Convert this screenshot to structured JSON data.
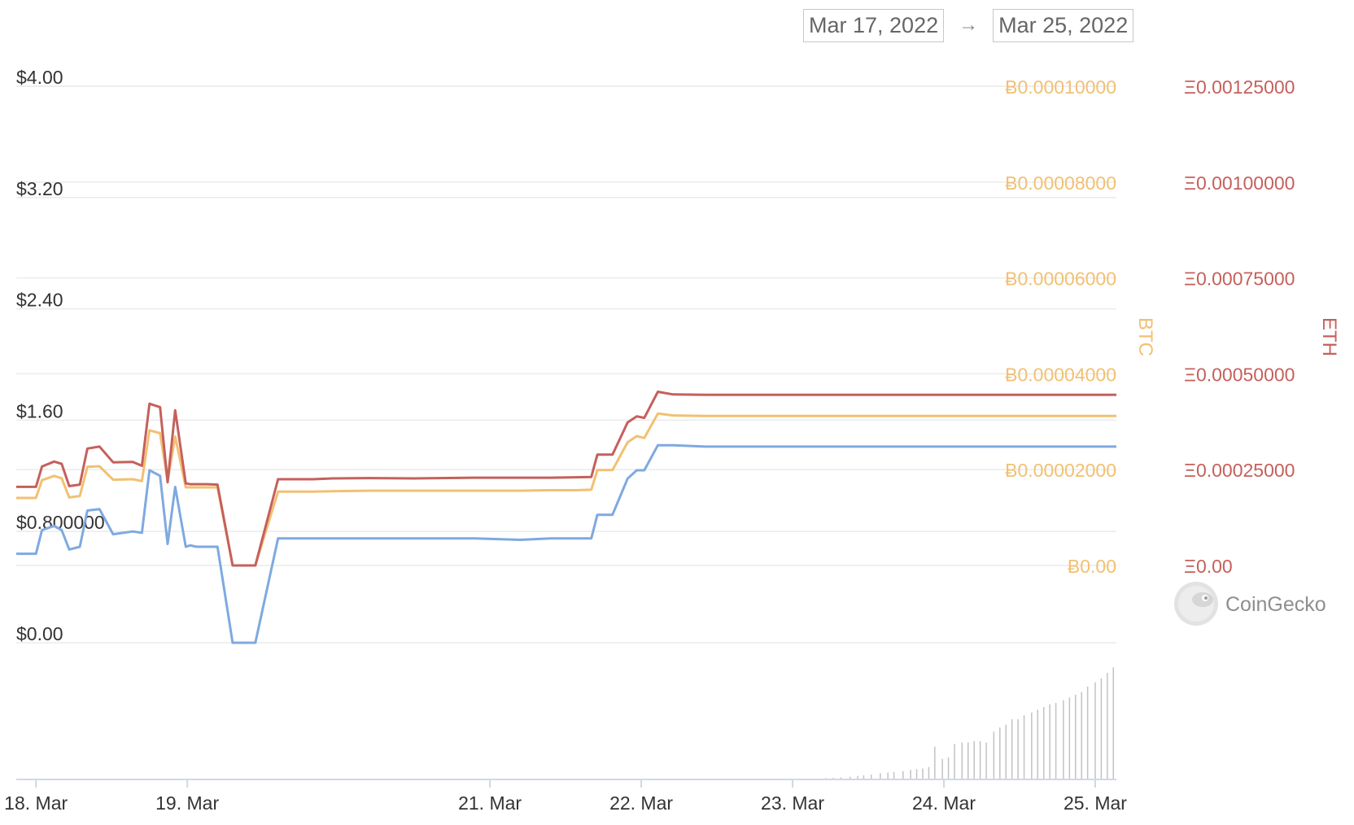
{
  "range": {
    "from": "Mar 17, 2022",
    "arrow": "→",
    "to": "Mar 25, 2022"
  },
  "brand": {
    "name": "CoinGecko",
    "icon": "gecko-logo-icon"
  },
  "colors": {
    "usd": "#7fa9e0",
    "btc": "#f2c072",
    "eth": "#c5605c",
    "grid": "#ebebeb",
    "axis_text": "#333333",
    "volume": "#c2c2c2"
  },
  "chart_data": {
    "type": "line",
    "x_unit": "days (day-of-month, March 2022)",
    "x_ticks": [
      {
        "x": 18,
        "label": "18. Mar"
      },
      {
        "x": 19,
        "label": "19. Mar"
      },
      {
        "x": 21,
        "label": "21. Mar"
      },
      {
        "x": 22,
        "label": "22. Mar"
      },
      {
        "x": 23,
        "label": "23. Mar"
      },
      {
        "x": 24,
        "label": "24. Mar"
      },
      {
        "x": 25,
        "label": "25. Mar"
      }
    ],
    "xlim": [
      17.87,
      25.14
    ],
    "axes": {
      "usd": {
        "ticks": [
          0,
          0.8,
          1.6,
          2.4,
          3.2,
          4.0
        ],
        "labels": [
          "$0.00",
          "$0.800000",
          "$1.60",
          "$2.40",
          "$3.20",
          "$4.00"
        ],
        "ylim": [
          0,
          4.0
        ]
      },
      "btc": {
        "ticks": [
          0,
          2e-05,
          4e-05,
          6e-05,
          8e-05,
          0.0001
        ],
        "labels": [
          "Ƀ0.00",
          "Ƀ0.00002000",
          "Ƀ0.00004000",
          "Ƀ0.00006000",
          "Ƀ0.00008000",
          "Ƀ0.00010000"
        ],
        "ylim": [
          0,
          0.0001
        ],
        "title": "BTC"
      },
      "eth": {
        "ticks": [
          0,
          0.00025,
          0.0005,
          0.00075,
          0.001,
          0.00125
        ],
        "labels": [
          "Ξ0.00",
          "Ξ0.00025000",
          "Ξ0.00050000",
          "Ξ0.00075000",
          "Ξ0.00100000",
          "Ξ0.00125000"
        ],
        "ylim": [
          0,
          0.00125
        ],
        "title": "ETH"
      }
    },
    "series": [
      {
        "axis": "usd",
        "x": [
          17.87,
          18.0,
          18.04,
          18.12,
          18.17,
          18.22,
          18.29,
          18.34,
          18.42,
          18.51,
          18.64,
          18.7,
          18.75,
          18.82,
          18.87,
          18.92,
          18.99,
          19.02,
          19.06,
          19.13,
          19.2,
          19.3,
          19.45,
          19.6,
          19.68,
          19.74,
          19.83,
          19.96,
          20.2,
          20.5,
          20.9,
          21.2,
          21.4,
          21.57,
          21.67,
          21.71,
          21.77,
          21.81,
          21.91,
          21.97,
          22.02,
          22.11,
          22.21,
          22.42,
          22.47,
          22.52,
          22.6,
          22.66,
          22.71,
          22.74,
          22.81,
          22.86,
          22.89,
          22.96,
          23.01,
          23.06,
          23.11,
          23.14,
          23.22,
          23.27,
          23.32,
          23.38,
          23.47,
          23.52,
          23.58,
          23.63,
          23.73,
          23.76,
          23.81,
          23.86,
          23.94,
          24.0,
          24.1,
          24.15,
          24.27,
          24.35,
          24.41,
          24.47,
          24.51,
          24.57,
          24.62,
          24.67,
          24.7,
          24.74,
          24.79,
          24.83,
          24.9,
          24.95,
          25.0,
          25.04,
          25.09,
          25.14
        ],
        "y": [
          0.64,
          0.64,
          0.81,
          0.84,
          0.81,
          0.67,
          0.69,
          0.95,
          0.96,
          0.78,
          0.8,
          0.79,
          1.24,
          1.2,
          0.71,
          1.12,
          0.69,
          0.7,
          0.69,
          0.69,
          0.69,
          0,
          0,
          0.75,
          0.75,
          0.75,
          0.75,
          0.75,
          0.75,
          0.75,
          0.75,
          0.74,
          0.75,
          0.75,
          0.75,
          0.92,
          0.92,
          0.92,
          1.18,
          1.24,
          1.24,
          1.42,
          1.42,
          1.41,
          1.41,
          1.41,
          1.41,
          1.41,
          1.41,
          1.41,
          1.41,
          1.41,
          1.41,
          1.41,
          1.41,
          1.41,
          1.41,
          1.41,
          1.41,
          1.41,
          1.41,
          1.41,
          1.41,
          1.41,
          1.41,
          1.41,
          1.41,
          1.41,
          1.41,
          1.41,
          1.41,
          1.41,
          1.41,
          1.41,
          1.41,
          1.41,
          1.41,
          1.41,
          1.41,
          1.41,
          1.41,
          1.41,
          1.41,
          1.41,
          1.41,
          1.41,
          1.41,
          1.41,
          1.41,
          1.41,
          1.41,
          1.41
        ]
      },
      {
        "axis": "btc",
        "x": [
          17.87,
          18.0,
          18.04,
          18.12,
          18.17,
          18.22,
          18.29,
          18.34,
          18.42,
          18.51,
          18.64,
          18.7,
          18.75,
          18.82,
          18.87,
          18.92,
          18.99,
          19.02,
          19.06,
          19.13,
          19.2,
          19.3,
          19.45,
          19.6,
          19.68,
          19.74,
          19.83,
          19.96,
          20.2,
          20.5,
          20.9,
          21.2,
          21.4,
          21.57,
          21.67,
          21.71,
          21.77,
          21.81,
          21.91,
          21.97,
          22.02,
          22.11,
          22.21,
          22.42,
          22.47,
          22.52,
          22.6,
          22.66,
          22.71,
          22.74,
          22.81,
          22.86,
          22.89,
          22.96,
          23.01,
          23.06,
          23.11,
          23.14,
          23.22,
          23.27,
          23.32,
          23.38,
          23.47,
          23.52,
          23.58,
          23.63,
          23.73,
          23.76,
          23.81,
          23.86,
          23.94,
          24.0,
          24.1,
          24.15,
          24.27,
          24.35,
          24.41,
          24.47,
          24.51,
          24.57,
          24.62,
          24.67,
          24.7,
          24.74,
          24.79,
          24.83,
          24.9,
          24.95,
          25.0,
          25.04,
          25.09,
          25.14
        ],
        "y": [
          1.41e-05,
          1.41e-05,
          1.78e-05,
          1.87e-05,
          1.82e-05,
          1.42e-05,
          1.45e-05,
          2.06e-05,
          2.07e-05,
          1.79e-05,
          1.8e-05,
          1.76e-05,
          2.82e-05,
          2.76e-05,
          1.76e-05,
          2.69e-05,
          1.63e-05,
          1.63e-05,
          1.63e-05,
          1.63e-05,
          1.63e-05,
          0,
          0,
          1.54e-05,
          1.54e-05,
          1.54e-05,
          1.54e-05,
          1.55e-05,
          1.56e-05,
          1.56e-05,
          1.56e-05,
          1.56e-05,
          1.57e-05,
          1.57e-05,
          1.58e-05,
          1.99e-05,
          1.99e-05,
          1.99e-05,
          2.57e-05,
          2.7e-05,
          2.66e-05,
          3.17e-05,
          3.13e-05,
          3.12e-05,
          3.12e-05,
          3.12e-05,
          3.12e-05,
          3.12e-05,
          3.12e-05,
          3.12e-05,
          3.12e-05,
          3.12e-05,
          3.12e-05,
          3.12e-05,
          3.12e-05,
          3.12e-05,
          3.12e-05,
          3.12e-05,
          3.12e-05,
          3.12e-05,
          3.12e-05,
          3.12e-05,
          3.12e-05,
          3.12e-05,
          3.12e-05,
          3.12e-05,
          3.12e-05,
          3.12e-05,
          3.12e-05,
          3.12e-05,
          3.12e-05,
          3.12e-05,
          3.12e-05,
          3.12e-05,
          3.12e-05,
          3.12e-05,
          3.12e-05,
          3.12e-05,
          3.12e-05,
          3.12e-05,
          3.12e-05,
          3.12e-05,
          3.12e-05,
          3.12e-05,
          3.12e-05,
          3.12e-05,
          3.12e-05,
          3.12e-05,
          3.12e-05,
          3.12e-05,
          3.12e-05,
          3.12e-05
        ]
      },
      {
        "axis": "eth",
        "x": [
          17.87,
          18.0,
          18.04,
          18.12,
          18.17,
          18.22,
          18.29,
          18.34,
          18.42,
          18.51,
          18.64,
          18.7,
          18.75,
          18.82,
          18.87,
          18.92,
          18.99,
          19.02,
          19.06,
          19.13,
          19.2,
          19.3,
          19.45,
          19.6,
          19.68,
          19.74,
          19.83,
          19.96,
          20.2,
          20.5,
          20.9,
          21.2,
          21.4,
          21.57,
          21.67,
          21.71,
          21.77,
          21.81,
          21.91,
          21.97,
          22.02,
          22.11,
          22.21,
          22.42,
          22.47,
          22.52,
          22.6,
          22.66,
          22.71,
          22.74,
          22.81,
          22.86,
          22.89,
          22.96,
          23.01,
          23.06,
          23.11,
          23.14,
          23.22,
          23.27,
          23.32,
          23.38,
          23.47,
          23.52,
          23.58,
          23.63,
          23.73,
          23.76,
          23.81,
          23.86,
          23.94,
          24.0,
          24.1,
          24.15,
          24.27,
          24.35,
          24.41,
          24.47,
          24.51,
          24.57,
          24.62,
          24.67,
          24.7,
          24.74,
          24.79,
          24.83,
          24.9,
          24.95,
          25.0,
          25.04,
          25.09,
          25.14
        ],
        "y": [
          0.000205,
          0.000205,
          0.000258,
          0.000271,
          0.000265,
          0.000207,
          0.000211,
          0.000305,
          0.00031,
          0.000269,
          0.00027,
          0.00026,
          0.000422,
          0.000413,
          0.000217,
          0.000405,
          0.000214,
          0.000212,
          0.000212,
          0.000212,
          0.000211,
          0,
          0,
          0.000225,
          0.000225,
          0.000225,
          0.000225,
          0.000227,
          0.000228,
          0.000227,
          0.000229,
          0.000229,
          0.000229,
          0.00023,
          0.000231,
          0.000289,
          0.000289,
          0.000289,
          0.000373,
          0.000389,
          0.000385,
          0.000453,
          0.000446,
          0.000445,
          0.000445,
          0.000445,
          0.000445,
          0.000445,
          0.000445,
          0.000445,
          0.000445,
          0.000445,
          0.000445,
          0.000445,
          0.000445,
          0.000445,
          0.000445,
          0.000445,
          0.000445,
          0.000445,
          0.000445,
          0.000445,
          0.000445,
          0.000445,
          0.000445,
          0.000445,
          0.000445,
          0.000445,
          0.000445,
          0.000445,
          0.000445,
          0.000445,
          0.000445,
          0.000445,
          0.000445,
          0.000445,
          0.000445,
          0.000445,
          0.000445,
          0.000445,
          0.000445,
          0.000445,
          0.000445,
          0.000445,
          0.000445,
          0.000445,
          0.000445,
          0.000445,
          0.000445,
          0.000445,
          0.000445,
          0.000445
        ]
      }
    ],
    "volume": {
      "x": [
        23.22,
        23.27,
        23.32,
        23.38,
        23.43,
        23.47,
        23.52,
        23.58,
        23.63,
        23.67,
        23.73,
        23.78,
        23.82,
        23.86,
        23.9,
        23.94,
        23.99,
        24.03,
        24.07,
        24.12,
        24.16,
        24.2,
        24.24,
        24.28,
        24.33,
        24.37,
        24.41,
        24.45,
        24.49,
        24.53,
        24.58,
        24.62,
        24.66,
        24.7,
        24.74,
        24.79,
        24.83,
        24.87,
        24.91,
        24.95,
        25.0,
        25.04,
        25.08,
        25.12
      ],
      "y": [
        1,
        1.2,
        1.5,
        2,
        2.5,
        3,
        3.5,
        4.5,
        5,
        5.5,
        6,
        7,
        7.5,
        8,
        9,
        24,
        15,
        16,
        26,
        27,
        27,
        28,
        28,
        27,
        35,
        38,
        40,
        44,
        44,
        47,
        49,
        51,
        53,
        55,
        56,
        58,
        60,
        62,
        64,
        68,
        71,
        74,
        78,
        82
      ],
      "ylim": [
        0,
        100
      ]
    }
  }
}
